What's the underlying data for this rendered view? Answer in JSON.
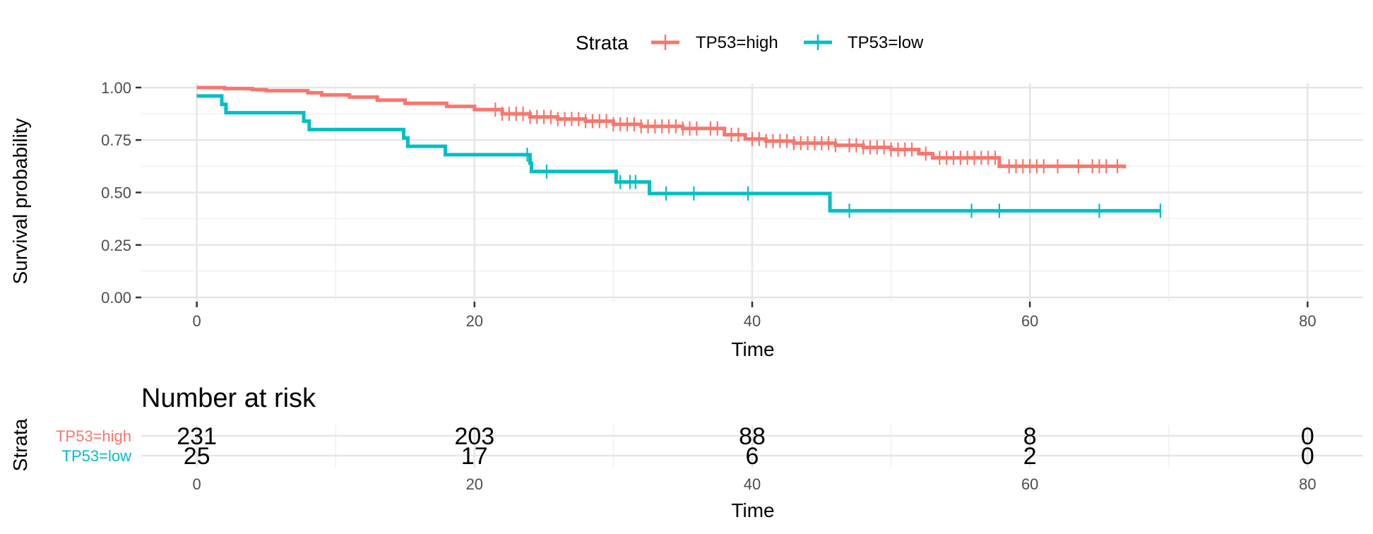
{
  "chart_data": {
    "type": "line",
    "subtype": "kaplan-meier",
    "legend": {
      "title": "Strata",
      "position": "top",
      "entries": [
        "TP53=high",
        "TP53=low"
      ]
    },
    "x_axis": {
      "title": "Time",
      "range": [
        -4,
        84
      ],
      "ticks": [
        0,
        20,
        40,
        60,
        80
      ],
      "tick_labels": [
        "0",
        "20",
        "40",
        "60",
        "80"
      ]
    },
    "y_axis": {
      "title": "Survival probability",
      "range": [
        -0.02,
        1.02
      ],
      "ticks": [
        0,
        0.25,
        0.5,
        0.75,
        1.0
      ],
      "tick_labels": [
        "0.00",
        "0.25",
        "0.50",
        "0.75",
        "1.00"
      ]
    },
    "grid": true,
    "series": [
      {
        "name": "TP53=high",
        "color": "#F8766D",
        "steps": [
          [
            0,
            1.0
          ],
          [
            2,
            0.995
          ],
          [
            4,
            0.99
          ],
          [
            5,
            0.985
          ],
          [
            8,
            0.975
          ],
          [
            9,
            0.965
          ],
          [
            11,
            0.955
          ],
          [
            13,
            0.94
          ],
          [
            15,
            0.925
          ],
          [
            18,
            0.91
          ],
          [
            20,
            0.895
          ],
          [
            22,
            0.875
          ],
          [
            24,
            0.86
          ],
          [
            26,
            0.85
          ],
          [
            28,
            0.84
          ],
          [
            30,
            0.825
          ],
          [
            32,
            0.815
          ],
          [
            35,
            0.805
          ],
          [
            38,
            0.775
          ],
          [
            39.5,
            0.755
          ],
          [
            41,
            0.745
          ],
          [
            43,
            0.735
          ],
          [
            46,
            0.725
          ],
          [
            48,
            0.715
          ],
          [
            50,
            0.705
          ],
          [
            52,
            0.685
          ],
          [
            53,
            0.665
          ],
          [
            57.8,
            0.625
          ],
          [
            66.8,
            0.615
          ]
        ],
        "censor_times": [
          21.5,
          22,
          22.5,
          23,
          23.5,
          24,
          24.5,
          25,
          25.5,
          26,
          26.5,
          27,
          27.5,
          28,
          28.5,
          29,
          29.5,
          30,
          30.5,
          31,
          31.5,
          32,
          32.5,
          33,
          33.5,
          34,
          34.5,
          35,
          35.5,
          36,
          37,
          37.5,
          38.5,
          39,
          40,
          40.5,
          41,
          41.5,
          42,
          42.5,
          43,
          43.5,
          44,
          44.5,
          45,
          45.5,
          46,
          47,
          47.5,
          48,
          48.5,
          49,
          49.5,
          50,
          50.5,
          51,
          51.5,
          52.5,
          53.5,
          54,
          54.5,
          55,
          55.5,
          56,
          56.5,
          57,
          57.5,
          58.5,
          59,
          59.5,
          60,
          60.5,
          61,
          62,
          63.5,
          64.5,
          65,
          65.5,
          66.3
        ]
      },
      {
        "name": "TP53=low",
        "color": "#00BFC4",
        "steps": [
          [
            0,
            0.96
          ],
          [
            1.8,
            0.92
          ],
          [
            2.1,
            0.88
          ],
          [
            7.7,
            0.84
          ],
          [
            8.1,
            0.8
          ],
          [
            14.9,
            0.76
          ],
          [
            15.2,
            0.72
          ],
          [
            17.9,
            0.68
          ],
          [
            24,
            0.64
          ],
          [
            24.1,
            0.6
          ],
          [
            30.2,
            0.55
          ],
          [
            32.6,
            0.495
          ],
          [
            45.6,
            0.413
          ],
          [
            69.4,
            0.413
          ]
        ],
        "censor_times": [
          23.8,
          25.2,
          30.5,
          31.2,
          31.6,
          33.8,
          35.8,
          39.7,
          47,
          55.8,
          57.8,
          65,
          69.4
        ]
      }
    ],
    "risk_table": {
      "title": "Number at risk",
      "y_title": "Strata",
      "x_title": "Time",
      "times": [
        0,
        20,
        40,
        60,
        80
      ],
      "tick_labels": [
        "0",
        "20",
        "40",
        "60",
        "80"
      ],
      "rows": [
        {
          "label": "TP53=high",
          "color": "#F8766D",
          "counts": [
            "231",
            "203",
            "88",
            "8",
            "0"
          ]
        },
        {
          "label": "TP53=low",
          "color": "#00BFC4",
          "counts": [
            "25",
            "17",
            "6",
            "2",
            "0"
          ]
        }
      ]
    }
  }
}
